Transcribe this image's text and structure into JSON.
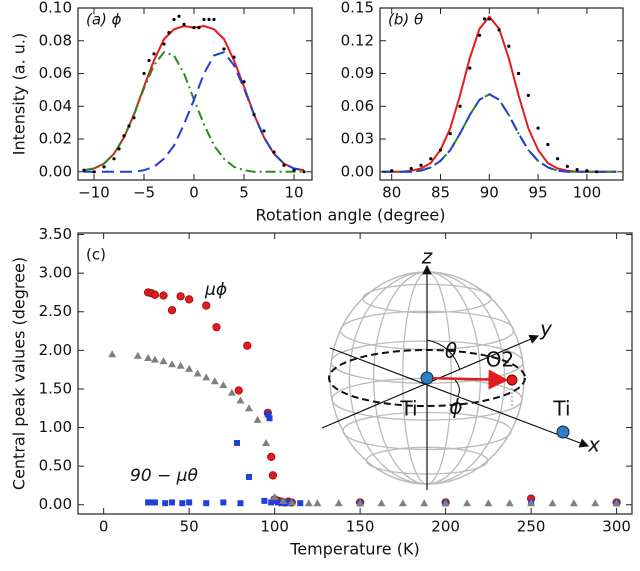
{
  "chart_data": [
    {
      "type": "line",
      "panel_label": "(a) ϕ",
      "ylabel": "Intensity (a. u.)",
      "xlabel": "Rotation angle (degree)",
      "x": [
        -11,
        -10,
        -9,
        -8,
        -7,
        -6,
        -5,
        -4,
        -3,
        -2,
        -1,
        0,
        1,
        2,
        3,
        4,
        5,
        6,
        7,
        8,
        9,
        10,
        11
      ],
      "xlim": [
        -11.6,
        11.8
      ],
      "xticks": [
        {
          "value": -10,
          "label": "−10"
        },
        {
          "value": -5,
          "label": "−5"
        },
        0,
        5,
        10
      ],
      "ylim": [
        -0.005,
        0.1
      ],
      "yticks": [
        {
          "value": 0,
          "label": "0.00"
        },
        {
          "value": 0.02,
          "label": "0.02"
        },
        {
          "value": 0.04,
          "label": "0.04"
        },
        {
          "value": 0.06,
          "label": "0.06"
        },
        {
          "value": 0.08,
          "label": "0.08"
        },
        {
          "value": 0.1,
          "label": "0.10"
        }
      ],
      "series": [
        {
          "type": "line",
          "color": "#e41a1c",
          "linestyle": "solid",
          "values": [
            0.001,
            0.002,
            0.005,
            0.011,
            0.021,
            0.035,
            0.052,
            0.068,
            0.081,
            0.087,
            0.089,
            0.088,
            0.089,
            0.087,
            0.081,
            0.068,
            0.052,
            0.035,
            0.021,
            0.011,
            0.005,
            0.002,
            0.001
          ]
        },
        {
          "type": "line",
          "color": "#2a8a1a",
          "linestyle": "dashdot",
          "values": [
            0.001,
            0.002,
            0.005,
            0.011,
            0.021,
            0.035,
            0.051,
            0.065,
            0.073,
            0.071,
            0.06,
            0.044,
            0.029,
            0.016,
            0.008,
            0.003,
            0.001,
            0,
            0,
            0,
            0,
            0,
            0
          ]
        },
        {
          "type": "line",
          "color": "#1f3fd8",
          "linestyle": "dashed",
          "values": [
            0,
            0,
            0,
            0,
            0,
            0,
            0.001,
            0.003,
            0.008,
            0.016,
            0.029,
            0.044,
            0.06,
            0.071,
            0.073,
            0.065,
            0.051,
            0.035,
            0.021,
            0.011,
            0.005,
            0.002,
            0.001
          ]
        },
        {
          "type": "scatter",
          "color": "#000000",
          "marker": "dot",
          "x": [
            -11,
            -10,
            -9,
            -8,
            -7.5,
            -7,
            -6.5,
            -6,
            -5,
            -4.5,
            -4,
            -3,
            -2.5,
            -2,
            -1.5,
            -1,
            0,
            0.5,
            1,
            1.5,
            2,
            3,
            4,
            5,
            6,
            7,
            8,
            9,
            10,
            11
          ],
          "values": [
            0.001,
            0,
            0.003,
            0.008,
            0.014,
            0.022,
            0.028,
            0.033,
            0.06,
            0.068,
            0.072,
            0.078,
            0.085,
            0.093,
            0.095,
            0.09,
            0.088,
            0.088,
            0.093,
            0.093,
            0.093,
            0.075,
            0.07,
            0.055,
            0.035,
            0.025,
            0.012,
            0.004,
            0.001,
            0
          ]
        }
      ]
    },
    {
      "type": "line",
      "panel_label": "(b) θ",
      "x": [
        79,
        80,
        81,
        82,
        83,
        84,
        85,
        86,
        87,
        88,
        89,
        90,
        91,
        92,
        93,
        94,
        95,
        96,
        97,
        98,
        99,
        100,
        101,
        102,
        103
      ],
      "xlim": [
        78.8,
        103.7
      ],
      "xticks": [
        80,
        85,
        90,
        95,
        100
      ],
      "ylim": [
        -0.0075,
        0.15
      ],
      "yticks": [
        {
          "value": 0,
          "label": "0.00"
        },
        {
          "value": 0.03,
          "label": "0.03"
        },
        {
          "value": 0.06,
          "label": "0.06"
        },
        {
          "value": 0.09,
          "label": "0.09"
        },
        {
          "value": 0.12,
          "label": "0.12"
        },
        {
          "value": 0.15,
          "label": "0.15"
        }
      ],
      "series": [
        {
          "type": "line",
          "color": "#e41a1c",
          "linestyle": "solid",
          "values": [
            0,
            0,
            0,
            0.001,
            0.003,
            0.008,
            0.02,
            0.04,
            0.07,
            0.104,
            0.131,
            0.142,
            0.131,
            0.104,
            0.07,
            0.04,
            0.02,
            0.008,
            0.003,
            0.001,
            0,
            0,
            0,
            0,
            0
          ]
        },
        {
          "type": "line",
          "color": "#2a8a1a",
          "linestyle": "dashdot",
          "values": [
            0,
            0,
            0,
            0,
            0.001,
            0.004,
            0.01,
            0.02,
            0.035,
            0.052,
            0.066,
            0.071,
            0.066,
            0.052,
            0.035,
            0.02,
            0.01,
            0.004,
            0.001,
            0,
            0,
            0,
            0,
            0,
            0
          ]
        },
        {
          "type": "line",
          "color": "#1f3fd8",
          "linestyle": "dashed",
          "values": [
            0,
            0,
            0,
            0,
            0.001,
            0.004,
            0.01,
            0.02,
            0.035,
            0.052,
            0.066,
            0.071,
            0.066,
            0.052,
            0.035,
            0.02,
            0.01,
            0.004,
            0.001,
            0,
            0,
            0,
            0,
            0,
            0
          ]
        },
        {
          "type": "scatter",
          "color": "#000000",
          "marker": "dot",
          "x": [
            80,
            82,
            83,
            84,
            85,
            86,
            87,
            88,
            89,
            89.5,
            90,
            91,
            92,
            93,
            94,
            95,
            96,
            97,
            98,
            99,
            100,
            101
          ],
          "values": [
            0.001,
            0.003,
            0.006,
            0.012,
            0.02,
            0.035,
            0.06,
            0.095,
            0.125,
            0.14,
            0.14,
            0.13,
            0.115,
            0.09,
            0.07,
            0.04,
            0.025,
            0.012,
            0.005,
            0.002,
            0.001,
            0
          ]
        }
      ]
    },
    {
      "type": "scatter",
      "panel_label": "(c)",
      "xlabel": "Temperature (K)",
      "ylabel": "Central peak values (degree)",
      "xlim": [
        -15,
        309
      ],
      "xticks": [
        0,
        50,
        100,
        150,
        200,
        250,
        300
      ],
      "ylim": [
        -0.12,
        3.52
      ],
      "yticks": [
        {
          "value": 0,
          "label": "0.00"
        },
        {
          "value": 0.5,
          "label": "0.50"
        },
        {
          "value": 1,
          "label": "1.00"
        },
        {
          "value": 1.5,
          "label": "1.50"
        },
        {
          "value": 2,
          "label": "2.00"
        },
        {
          "value": 2.5,
          "label": "2.50"
        },
        {
          "value": 3,
          "label": "3.00"
        },
        {
          "value": 3.5,
          "label": "3.50"
        }
      ],
      "series": [
        {
          "name": "μϕ",
          "color": "#e41a1c",
          "marker": "circle",
          "x": [
            26,
            28,
            30,
            35,
            40,
            45,
            50,
            60,
            66,
            79,
            84,
            96,
            98,
            99,
            100,
            102,
            104,
            106,
            108,
            110,
            150,
            200,
            250,
            300
          ],
          "values": [
            2.75,
            2.74,
            2.72,
            2.71,
            2.52,
            2.7,
            2.66,
            2.58,
            2.3,
            1.48,
            2.06,
            1.19,
            0.62,
            0.38,
            0.07,
            0.05,
            0.04,
            0.03,
            0.04,
            0.03,
            0.03,
            0.03,
            0.08,
            0.03
          ]
        },
        {
          "name": "90 − μθ",
          "color": "#1f3fd8",
          "marker": "square",
          "x": [
            26,
            28,
            30,
            36,
            40,
            46,
            50,
            60,
            70,
            78,
            80,
            85,
            94,
            96,
            97,
            98,
            100,
            102,
            104,
            106,
            108,
            110,
            115,
            150,
            200,
            250,
            300
          ],
          "values": [
            0.03,
            0.03,
            0.03,
            0.02,
            0.03,
            0.02,
            0.03,
            0.02,
            0.03,
            0.8,
            0.02,
            0.36,
            0.05,
            1.17,
            1.12,
            0.03,
            0.05,
            0.03,
            0.02,
            0.03,
            0.02,
            0.03,
            0.02,
            0.02,
            0.02,
            0.03,
            0.02
          ]
        },
        {
          "color": "#808080",
          "marker": "triangle",
          "x": [
            5,
            20,
            26,
            30,
            35,
            40,
            45,
            50,
            55,
            60,
            65,
            70,
            75,
            80,
            85,
            90,
            95,
            100,
            105,
            110,
            120,
            125,
            137.5,
            150,
            162.5,
            175,
            187.5,
            200,
            212.5,
            225,
            237.5,
            250,
            262.5,
            275,
            287.5,
            300
          ],
          "values": [
            1.95,
            1.93,
            1.9,
            1.88,
            1.86,
            1.82,
            1.8,
            1.76,
            1.7,
            1.65,
            1.6,
            1.55,
            1.45,
            1.35,
            1.25,
            1.1,
            0.8,
            0.1,
            0.05,
            0.03,
            0.02,
            0.02,
            0.02,
            0.02,
            0.02,
            0.02,
            0.02,
            0.02,
            0.02,
            0.02,
            0.02,
            0.02,
            0.02,
            0.02,
            0.02,
            0.02
          ]
        }
      ],
      "inset": {
        "z": "z",
        "y": "y",
        "x": "x",
        "theta": "θ",
        "phi": "ϕ",
        "o2": "O2",
        "ti_center": "Ti",
        "ti_end": "Ti"
      }
    }
  ]
}
